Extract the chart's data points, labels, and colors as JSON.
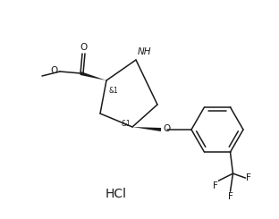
{
  "background_color": "#ffffff",
  "line_color": "#1a1a1a",
  "text_color": "#1a1a1a",
  "figsize": [
    3.12,
    2.45
  ],
  "dpi": 100,
  "hcl_label": "HCl",
  "stereo_label_1": "&1",
  "stereo_label_2": "&1",
  "nh_label": "NH",
  "o_label": "O",
  "carbonyl_o_label": "O",
  "f_labels": [
    "F",
    "F",
    "F"
  ],
  "font_size_main": 7.5,
  "font_size_stereo": 5.5,
  "font_size_hcl": 10,
  "lw": 1.1
}
